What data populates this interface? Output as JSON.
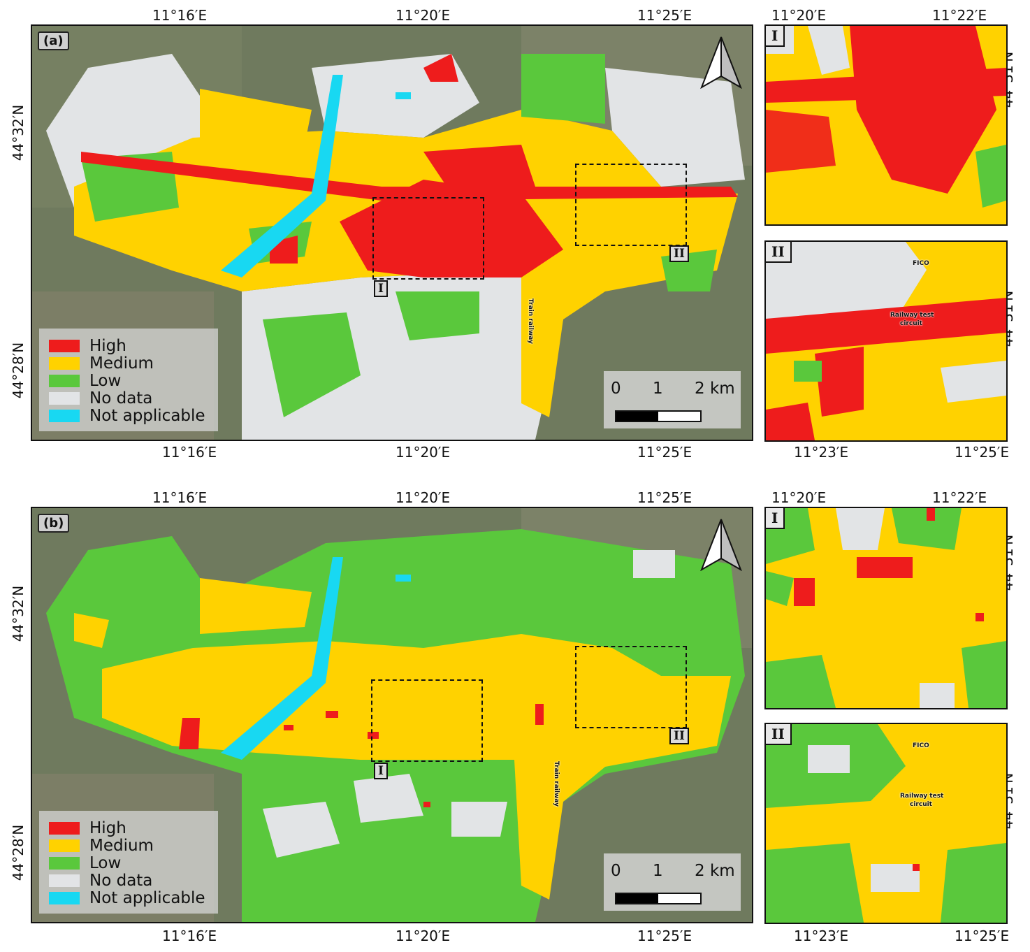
{
  "colors": {
    "high": "#ee1c1c",
    "medium": "#ffd200",
    "low": "#5ac83c",
    "no_data": "#e2e4e6",
    "not_applicable": "#18d8f2",
    "satellite": "#6f7a5e"
  },
  "legend": [
    {
      "key": "high",
      "label": "High",
      "color": "#ee1c1c"
    },
    {
      "key": "medium",
      "label": "Medium",
      "color": "#ffd200"
    },
    {
      "key": "low",
      "label": "Low",
      "color": "#5ac83c"
    },
    {
      "key": "no_data",
      "label": "No data",
      "color": "#e2e4e6"
    },
    {
      "key": "not_applicable",
      "label": "Not applicable",
      "color": "#18d8f2"
    }
  ],
  "scalebar": {
    "labels": [
      "0",
      "1",
      "2 km"
    ]
  },
  "main_map": {
    "lon_ticks": [
      "11°16′E",
      "11°20′E",
      "11°25′E"
    ],
    "lat_ticks": [
      "44°32′N",
      "44°28′N"
    ]
  },
  "inset_I": {
    "lon_ticks": [
      "11°20′E",
      "11°22′E"
    ],
    "lat_tick": "44°31′N",
    "label": "I"
  },
  "inset_II": {
    "lon_ticks": [
      "11°23′E",
      "11°25′E"
    ],
    "lat_tick": "44°31′N",
    "label": "II",
    "annotations": {
      "fico": "FICO",
      "railway_test": "Railway test",
      "circuit": "circuit"
    }
  },
  "annotations": {
    "train_railway": "Train railway"
  },
  "panels": [
    {
      "id": "a",
      "tag": "(a)"
    },
    {
      "id": "b",
      "tag": "(b)"
    }
  ]
}
